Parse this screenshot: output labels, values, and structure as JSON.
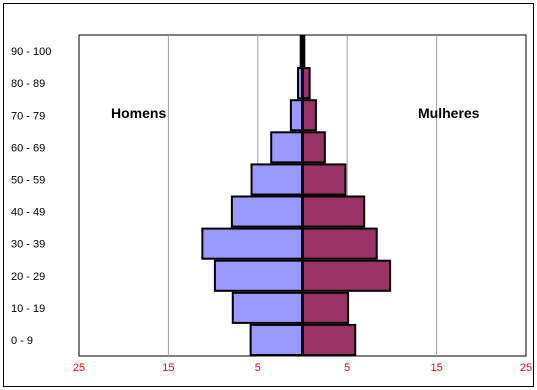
{
  "chart_data": {
    "type": "bar",
    "orientation": "horizontal-pyramid",
    "categories": [
      "0 - 9",
      "10 - 19",
      "20 - 29",
      "30 - 39",
      "40 - 49",
      "50 - 59",
      "60 - 69",
      "70 - 79",
      "80 - 89",
      "90 - 100"
    ],
    "series": [
      {
        "name": "Homens",
        "values": [
          5.8,
          7.8,
          9.8,
          11.2,
          7.9,
          5.7,
          3.5,
          1.3,
          0.5,
          0.2
        ],
        "color": "#9999ff"
      },
      {
        "name": "Mulheres",
        "values": [
          5.9,
          5.1,
          9.8,
          8.3,
          6.9,
          4.8,
          2.5,
          1.5,
          0.8,
          0.2
        ],
        "color": "#993366"
      }
    ],
    "x_ticks": [
      "25",
      "15",
      "5",
      "5",
      "15",
      "25"
    ],
    "x_tick_color": "#ff0000",
    "xlim": [
      -25,
      25
    ],
    "grid": true
  }
}
